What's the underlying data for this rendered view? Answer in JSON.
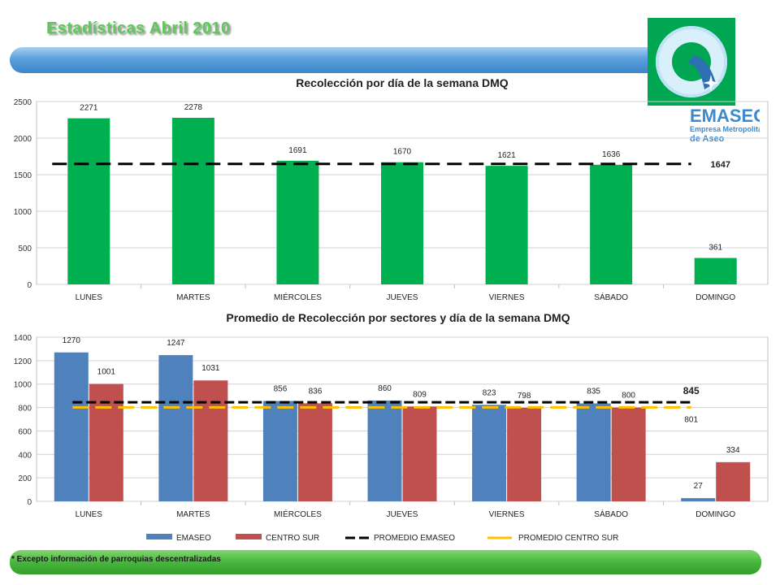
{
  "header": {
    "title": "Estadísticas   Abril  2010"
  },
  "logo": {
    "name": "EMASEO",
    "subtitle_line1": "Empresa Metropolitana",
    "subtitle_line2": "de Aseo"
  },
  "colors": {
    "green_bar": "#00b050",
    "emaseo_blue": "#4f81bd",
    "centro_sur_red": "#c0504d",
    "avg_black": "#000000",
    "avg_yellow": "#ffc000"
  },
  "footnote": "* Excepto información  de parroquias descentralizadas",
  "chart_data": [
    {
      "type": "bar",
      "title": "Recolección por día de la semana  DMQ",
      "categories": [
        "LUNES",
        "MARTES",
        "MIÉRCOLES",
        "JUEVES",
        "VIERNES",
        "SÁBADO",
        "DOMINGO"
      ],
      "values": [
        2271,
        2278,
        1691,
        1670,
        1621,
        1636,
        361
      ],
      "data_labels": [
        "2271",
        "2278",
        "1691",
        "1670",
        "1621",
        "1636",
        "361"
      ],
      "ylim": [
        0,
        2500
      ],
      "yticks": [
        "0",
        "500",
        "1000",
        "1500",
        "2000",
        "2500"
      ],
      "average": {
        "value": 1647,
        "label": "1647"
      },
      "grid": true
    },
    {
      "type": "bar",
      "title": "Promedio de Recolección por sectores y día de la semana DMQ",
      "categories": [
        "LUNES",
        "MARTES",
        "MIÉRCOLES",
        "JUEVES",
        "VIERNES",
        "SÁBADO",
        "DOMINGO"
      ],
      "series": [
        {
          "name": "EMASEO",
          "values": [
            1270,
            1247,
            856,
            860,
            823,
            835,
            27
          ],
          "labels": [
            "1270",
            "1247",
            "856",
            "860",
            "823",
            "835",
            "27"
          ]
        },
        {
          "name": "CENTRO SUR",
          "values": [
            1001,
            1031,
            836,
            809,
            798,
            800,
            334
          ],
          "labels": [
            "1001",
            "1031",
            "836",
            "809",
            "798",
            "800",
            "334"
          ]
        }
      ],
      "averages": [
        {
          "name": "PROMEDIO EMASEO",
          "value": 845,
          "label": "845"
        },
        {
          "name": "PROMEDIO CENTRO SUR",
          "value": 801,
          "label": "801"
        }
      ],
      "ylim": [
        0,
        1400
      ],
      "yticks": [
        "0",
        "200",
        "400",
        "600",
        "800",
        "1000",
        "1200",
        "1400"
      ],
      "legend_position": "bottom",
      "grid": true
    }
  ]
}
